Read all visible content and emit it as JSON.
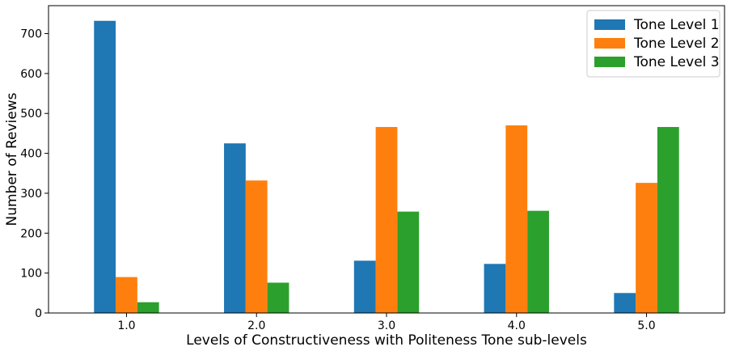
{
  "chart_data": {
    "type": "bar",
    "title": "",
    "xlabel": "Levels of Constructiveness with Politeness Tone sub-levels",
    "ylabel": "Number of Reviews",
    "categories": [
      "1.0",
      "2.0",
      "3.0",
      "4.0",
      "5.0"
    ],
    "series": [
      {
        "name": "Tone Level 1",
        "color": "#1f77b4",
        "values": [
          732,
          425,
          131,
          123,
          50
        ]
      },
      {
        "name": "Tone Level 2",
        "color": "#ff7f0e",
        "values": [
          90,
          332,
          466,
          470,
          326
        ]
      },
      {
        "name": "Tone Level 3",
        "color": "#2ca02c",
        "values": [
          27,
          76,
          254,
          256,
          466
        ]
      }
    ],
    "ylim": [
      0,
      770
    ],
    "yticks": [
      0,
      100,
      200,
      300,
      400,
      500,
      600,
      700
    ],
    "grid": false,
    "legend": "top-right"
  }
}
